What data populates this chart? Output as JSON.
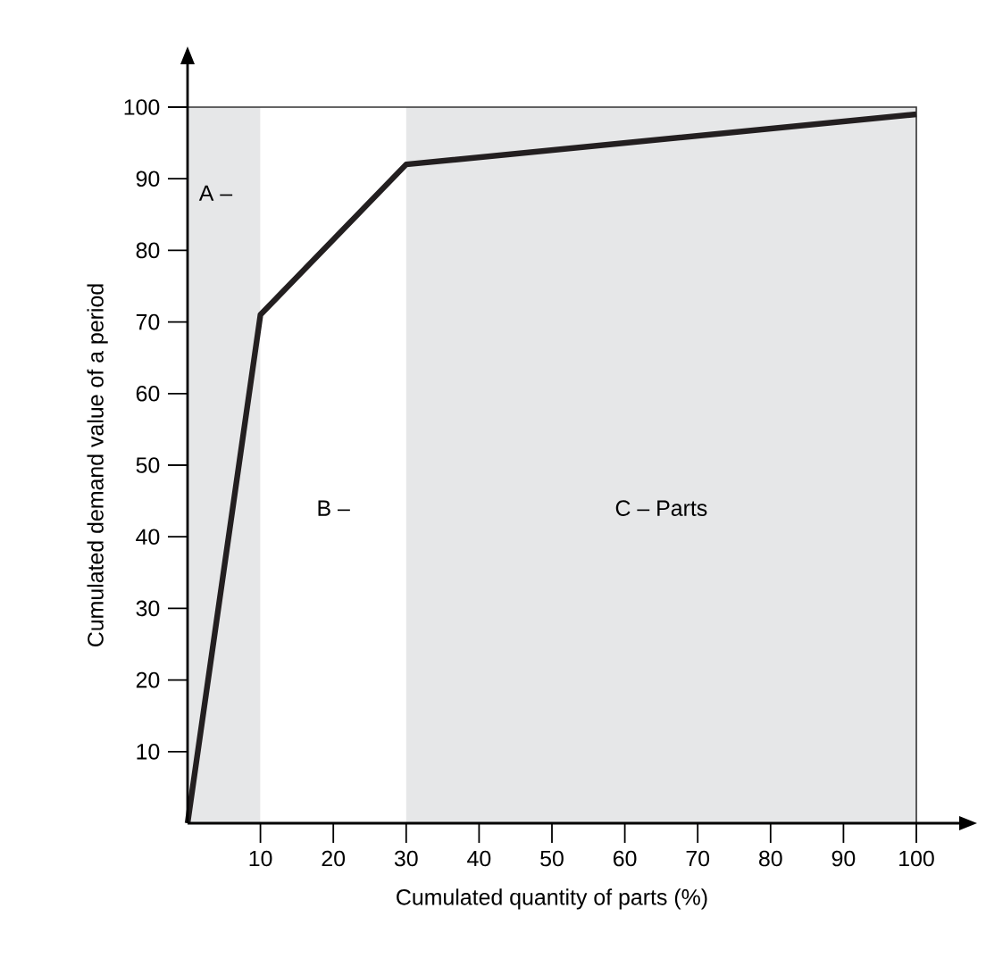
{
  "chart_data": {
    "type": "line",
    "xlabel": "Cumulated quantity of parts (%)",
    "ylabel": "Cumulated demand value of a period",
    "x": [
      0,
      10,
      30,
      100
    ],
    "series": [
      {
        "color": "#231f20",
        "values": [
          0,
          71,
          92,
          99
        ]
      }
    ],
    "xlim": [
      0,
      100
    ],
    "ylim": [
      0,
      100
    ],
    "xticks": [
      10,
      20,
      30,
      40,
      50,
      60,
      70,
      80,
      90,
      100
    ],
    "yticks": [
      10,
      20,
      30,
      40,
      50,
      60,
      70,
      80,
      90,
      100
    ],
    "bands": [
      {
        "axis": "x",
        "from": 0,
        "to": 10,
        "label": "A –",
        "color": "#e6e7e8"
      },
      {
        "axis": "x",
        "from": 10,
        "to": 30,
        "label": "B –",
        "color": "#ffffff"
      },
      {
        "axis": "x",
        "from": 30,
        "to": 100,
        "label": "C – Parts",
        "color": "#e6e7e8"
      }
    ],
    "grid": false,
    "marker": "none",
    "line_style": "solid"
  }
}
